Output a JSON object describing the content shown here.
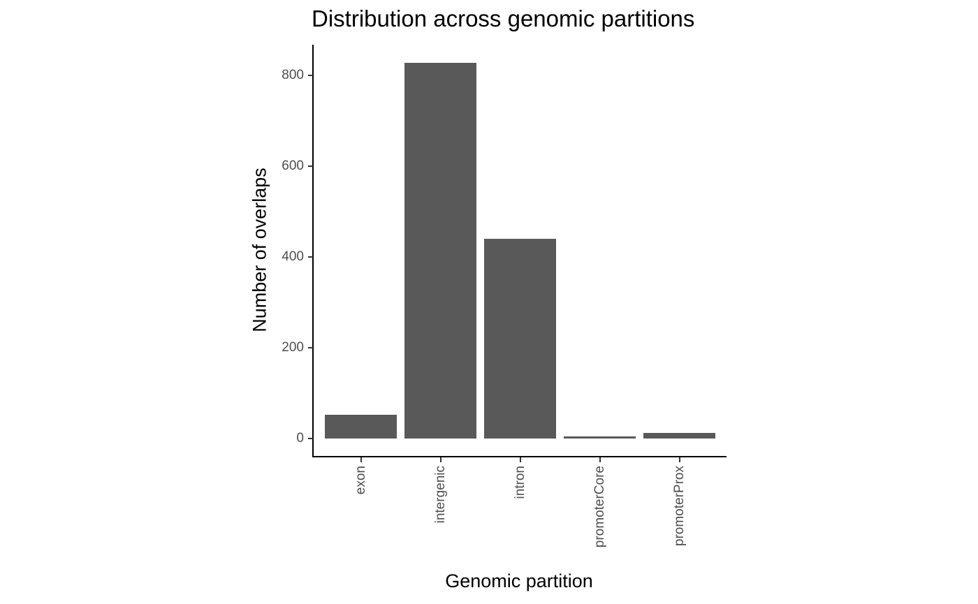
{
  "chart_data": {
    "type": "bar",
    "title": "Distribution across genomic partitions",
    "xlabel": "Genomic partition",
    "ylabel": "Number of overlaps",
    "categories": [
      "exon",
      "intergenic",
      "intron",
      "promoterCore",
      "promoterProx"
    ],
    "values": [
      52,
      828,
      440,
      5,
      12
    ],
    "ylim": [
      -40,
      870
    ],
    "yticks": [
      0,
      200,
      400,
      600,
      800
    ],
    "ytick_labels": [
      "0",
      "200",
      "400",
      "600",
      "800"
    ],
    "grid": false,
    "legend": null,
    "bar_color": "#595959",
    "xtick_rotation": 90
  }
}
